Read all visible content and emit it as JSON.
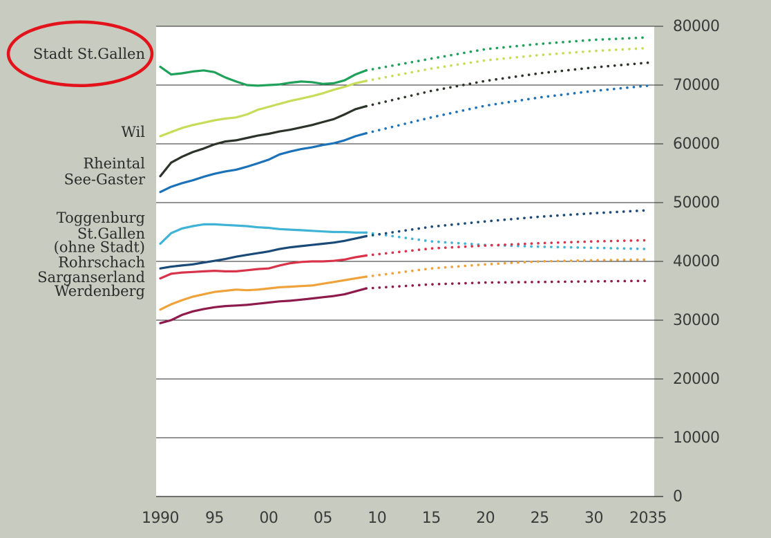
{
  "chart_data": {
    "type": "line",
    "x_ticks": [
      1990,
      1995,
      2000,
      2005,
      2010,
      2015,
      2020,
      2025,
      2030,
      2035
    ],
    "x_tick_labels": [
      "1990",
      "95",
      "00",
      "05",
      "10",
      "15",
      "20",
      "25",
      "30",
      "2035"
    ],
    "y_ticks": [
      0,
      10000,
      20000,
      30000,
      40000,
      50000,
      60000,
      70000,
      80000
    ],
    "y_tick_labels": [
      "0",
      "10000",
      "20000",
      "30000",
      "40000",
      "50000",
      "60000",
      "70000",
      "80000"
    ],
    "xlim": [
      1990,
      2035
    ],
    "ylim": [
      0,
      80000
    ],
    "grid": "horizontal",
    "legend_placement": "left",
    "historical_style": "solid",
    "projection_style": "dotted",
    "series": [
      {
        "name": "Stadt St.Gallen",
        "color": "#1fa15a",
        "x": [
          1990,
          1991,
          1992,
          1993,
          1994,
          1995,
          1996,
          1997,
          1998,
          1999,
          2000,
          2001,
          2002,
          2003,
          2004,
          2005,
          2006,
          2007,
          2008,
          2009
        ],
        "values": [
          73100,
          71800,
          72000,
          72300,
          72500,
          72200,
          71300,
          70600,
          70000,
          69900,
          70000,
          70100,
          70400,
          70600,
          70500,
          70200,
          70300,
          70800,
          71800,
          72500
        ],
        "projection_x": [
          2009,
          2015,
          2020,
          2025,
          2030,
          2035
        ],
        "projection_values": [
          72500,
          74500,
          76100,
          77000,
          77700,
          78100
        ]
      },
      {
        "name": "Wil",
        "color": "#c8dc5a",
        "x": [
          1990,
          1991,
          1992,
          1993,
          1994,
          1995,
          1996,
          1997,
          1998,
          1999,
          2000,
          2001,
          2002,
          2003,
          2004,
          2005,
          2006,
          2007,
          2008,
          2009
        ],
        "values": [
          61300,
          62000,
          62700,
          63200,
          63600,
          64000,
          64300,
          64500,
          65000,
          65800,
          66300,
          66800,
          67300,
          67700,
          68100,
          68600,
          69200,
          69700,
          70300,
          70700
        ],
        "projection_x": [
          2009,
          2015,
          2020,
          2025,
          2030,
          2035
        ],
        "projection_values": [
          70700,
          72800,
          74200,
          75100,
          75800,
          76300
        ]
      },
      {
        "name": "Rheintal",
        "color": "#2c3328",
        "x": [
          1990,
          1991,
          1992,
          1993,
          1994,
          1995,
          1996,
          1997,
          1998,
          1999,
          2000,
          2001,
          2002,
          2003,
          2004,
          2005,
          2006,
          2007,
          2008,
          2009
        ],
        "values": [
          54500,
          56800,
          57800,
          58600,
          59200,
          59900,
          60400,
          60600,
          61000,
          61400,
          61700,
          62100,
          62400,
          62800,
          63200,
          63700,
          64200,
          65000,
          65900,
          66400
        ],
        "projection_x": [
          2009,
          2015,
          2020,
          2025,
          2030,
          2035
        ],
        "projection_values": [
          66400,
          69000,
          70700,
          72000,
          73000,
          73800
        ]
      },
      {
        "name": "See-Gaster",
        "color": "#1c72b8",
        "x": [
          1990,
          1991,
          1992,
          1993,
          1994,
          1995,
          1996,
          1997,
          1998,
          1999,
          2000,
          2001,
          2002,
          2003,
          2004,
          2005,
          2006,
          2007,
          2008,
          2009
        ],
        "values": [
          51800,
          52700,
          53300,
          53800,
          54400,
          54900,
          55300,
          55600,
          56100,
          56700,
          57300,
          58200,
          58700,
          59100,
          59400,
          59800,
          60100,
          60600,
          61300,
          61800
        ],
        "projection_x": [
          2009,
          2015,
          2020,
          2025,
          2030,
          2035
        ],
        "projection_values": [
          61800,
          64500,
          66500,
          67900,
          69000,
          69900
        ]
      },
      {
        "name": "Toggenburg",
        "color": "#3fb3d6",
        "x": [
          1990,
          1991,
          1992,
          1993,
          1994,
          1995,
          1996,
          1997,
          1998,
          1999,
          2000,
          2001,
          2002,
          2003,
          2004,
          2005,
          2006,
          2007,
          2008,
          2009
        ],
        "values": [
          43000,
          44800,
          45600,
          46000,
          46300,
          46300,
          46200,
          46100,
          46000,
          45800,
          45700,
          45500,
          45400,
          45300,
          45200,
          45100,
          45000,
          45000,
          44900,
          44900
        ],
        "projection_x": [
          2009,
          2015,
          2020,
          2025,
          2030,
          2035
        ],
        "projection_values": [
          44900,
          43400,
          42800,
          42500,
          42300,
          42100
        ]
      },
      {
        "name": "St.Gallen (ohne Stadt)",
        "color": "#1a4a78",
        "x": [
          1990,
          1991,
          1992,
          1993,
          1994,
          1995,
          1996,
          1997,
          1998,
          1999,
          2000,
          2001,
          2002,
          2003,
          2004,
          2005,
          2006,
          2007,
          2008,
          2009
        ],
        "values": [
          38800,
          39100,
          39300,
          39500,
          39800,
          40100,
          40400,
          40800,
          41100,
          41400,
          41700,
          42100,
          42400,
          42600,
          42800,
          43000,
          43200,
          43500,
          43900,
          44300
        ],
        "projection_x": [
          2009,
          2015,
          2020,
          2025,
          2030,
          2035
        ],
        "projection_values": [
          44300,
          45900,
          46800,
          47600,
          48200,
          48700
        ]
      },
      {
        "name": "Rohrschach",
        "color": "#d8334a",
        "x": [
          1990,
          1991,
          1992,
          1993,
          1994,
          1995,
          1996,
          1997,
          1998,
          1999,
          2000,
          2001,
          2002,
          2003,
          2004,
          2005,
          2006,
          2007,
          2008,
          2009
        ],
        "values": [
          37100,
          37900,
          38100,
          38200,
          38300,
          38400,
          38300,
          38300,
          38500,
          38700,
          38800,
          39300,
          39700,
          39900,
          40000,
          40000,
          40100,
          40300,
          40700,
          41000
        ],
        "projection_x": [
          2009,
          2015,
          2020,
          2025,
          2030,
          2035
        ],
        "projection_values": [
          41000,
          42200,
          42700,
          43100,
          43400,
          43600
        ]
      },
      {
        "name": "Sarganserland",
        "color": "#f0a23a",
        "x": [
          1990,
          1991,
          1992,
          1993,
          1994,
          1995,
          1996,
          1997,
          1998,
          1999,
          2000,
          2001,
          2002,
          2003,
          2004,
          2005,
          2006,
          2007,
          2008,
          2009
        ],
        "values": [
          31800,
          32700,
          33400,
          34000,
          34400,
          34800,
          35000,
          35200,
          35100,
          35200,
          35400,
          35600,
          35700,
          35800,
          35900,
          36200,
          36500,
          36800,
          37100,
          37400
        ],
        "projection_x": [
          2009,
          2015,
          2020,
          2025,
          2030,
          2035
        ],
        "projection_values": [
          37400,
          38800,
          39500,
          40000,
          40200,
          40300
        ]
      },
      {
        "name": "Werdenberg",
        "color": "#8e1a4c",
        "x": [
          1990,
          1991,
          1992,
          1993,
          1994,
          1995,
          1996,
          1997,
          1998,
          1999,
          2000,
          2001,
          2002,
          2003,
          2004,
          2005,
          2006,
          2007,
          2008,
          2009
        ],
        "values": [
          29500,
          30000,
          30900,
          31500,
          31900,
          32200,
          32400,
          32500,
          32600,
          32800,
          33000,
          33200,
          33300,
          33500,
          33700,
          33900,
          34100,
          34400,
          34900,
          35400
        ],
        "projection_x": [
          2009,
          2015,
          2020,
          2025,
          2030,
          2035
        ],
        "projection_values": [
          35400,
          36100,
          36400,
          36500,
          36600,
          36700
        ]
      }
    ]
  },
  "labels": [
    {
      "text": "Stadt St.Gallen",
      "anchor_value": 74500
    },
    {
      "text": "Wil",
      "anchor_value": 61200
    },
    {
      "text": "Rheintal",
      "anchor_value": 55800
    },
    {
      "text": "See-Gaster",
      "anchor_value": 53100
    },
    {
      "text": "Toggenburg",
      "anchor_value": 46600
    },
    {
      "text": "St.Gallen",
      "anchor_value": 43900
    },
    {
      "text": "(ohne Stadt)",
      "anchor_value": 41600
    },
    {
      "text": "Rohrschach",
      "anchor_value": 39000
    },
    {
      "text": "Sarganserland",
      "anchor_value": 36500
    },
    {
      "text": "Werdenberg",
      "anchor_value": 34100
    }
  ],
  "highlight": {
    "target": "Stadt St.Gallen",
    "color": "#e3131b"
  },
  "colors": {
    "background": "#c8cbbf",
    "plot_area": "#ffffff",
    "gridline": "#2a2a2a",
    "tick_text": "#3a3a3a",
    "label_text": "#2b2b2b"
  }
}
